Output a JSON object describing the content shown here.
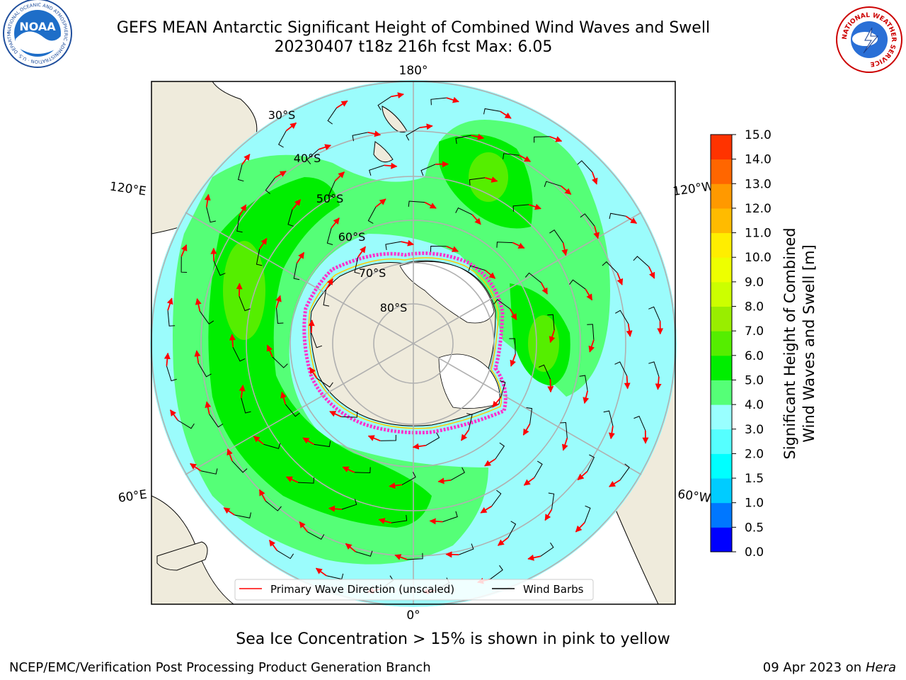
{
  "header": {
    "title_line1": "GEFS MEAN Antarctic Significant Height of Combined Wind Waves and Swell",
    "title_line2": "20230407 t18z 216h fcst   Max: 6.05",
    "left_logo_text": "NOAA",
    "left_logo_ring": "NATIONAL OCEANIC AND ATMOSPHERIC ADMINISTRATION · U.S. DEPARTMENT OF COMMERCE",
    "right_logo_ring": "NATIONAL WEATHER SERVICE"
  },
  "map": {
    "projection": "south polar stereographic",
    "longitude_labels": {
      "top": "180°",
      "bottom": "0°",
      "upper_left": "120°E",
      "lower_left": "60°E",
      "upper_right": "120°W",
      "lower_right": "60°W"
    },
    "latitude_labels": [
      "30°S",
      "40°S",
      "50°S",
      "60°S",
      "70°S",
      "80°S"
    ],
    "colors": {
      "land": "#efebdc",
      "ice_shelf": "#ffffff",
      "grid": "#b0b0b0",
      "sea_ice": "#ff33cc"
    },
    "legend": {
      "wave_direction": "Primary Wave Direction (unscaled)",
      "wind_barbs": "Wind Barbs"
    }
  },
  "colorbar": {
    "label_line1": "Significant Height of Combined",
    "label_line2": "Wind Waves and Swell [m]",
    "ticks": [
      "0.0",
      "0.5",
      "1.0",
      "1.5",
      "2.0",
      "3.0",
      "4.0",
      "5.0",
      "6.0",
      "7.0",
      "8.0",
      "9.0",
      "10.0",
      "11.0",
      "12.0",
      "13.0",
      "14.0",
      "15.0"
    ],
    "colors": [
      "#0000ff",
      "#0077ff",
      "#00ccff",
      "#00ffff",
      "#55ffff",
      "#99ffff",
      "#55ff77",
      "#00ee00",
      "#55ee00",
      "#99ee00",
      "#ccff00",
      "#eeff00",
      "#ffee00",
      "#ffbb00",
      "#ff9900",
      "#ff6600",
      "#ff3300",
      "#ff0000"
    ]
  },
  "footer": {
    "caption": "Sea Ice Concentration > 15% is shown in pink to yellow",
    "credit": "NCEP/EMC/Verification Post Processing Product Generation Branch",
    "date": "09 Apr 2023 on",
    "host": "Hera"
  }
}
